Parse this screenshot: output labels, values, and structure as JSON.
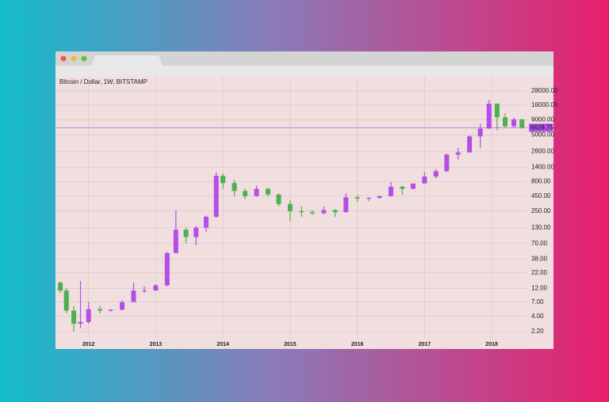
{
  "chart_data": {
    "type": "candlestick",
    "title": "Bitcoin / Dollar, 1W, BITSTAMP",
    "log_scale": true,
    "grid": true,
    "up_color": "#b34ee6",
    "down_color": "#4caf50",
    "last_price": 6628.75,
    "last_price_color": "#b34ee6",
    "xlim": [
      2011.52,
      2018.53
    ],
    "xticks": [
      2012,
      2013,
      2014,
      2015,
      2016,
      2017,
      2018
    ],
    "ylim": [
      1.66,
      49000
    ],
    "yticks": [
      {
        "value": 2.2,
        "label": "2.20"
      },
      {
        "value": 4,
        "label": "4.00"
      },
      {
        "value": 7,
        "label": "7.00"
      },
      {
        "value": 12,
        "label": "12.00"
      },
      {
        "value": 22,
        "label": "22.00"
      },
      {
        "value": 38,
        "label": "38.00"
      },
      {
        "value": 70,
        "label": "70.00"
      },
      {
        "value": 130,
        "label": "130.00"
      },
      {
        "value": 250,
        "label": "250.00"
      },
      {
        "value": 450,
        "label": "450.00"
      },
      {
        "value": 800,
        "label": "800.00"
      },
      {
        "value": 1400,
        "label": "1400.00"
      },
      {
        "value": 2600,
        "label": "2600.00"
      },
      {
        "value": 5000,
        "label": "5000.00"
      },
      {
        "value": 9000,
        "label": "9000.00"
      },
      {
        "value": 16000,
        "label": "16000.00"
      },
      {
        "value": 28000,
        "label": "28000.00"
      }
    ],
    "x": [
      2011.58,
      2011.67,
      2011.78,
      2011.88,
      2012.0,
      2012.17,
      2012.33,
      2012.5,
      2012.67,
      2012.83,
      2013.0,
      2013.17,
      2013.3,
      2013.45,
      2013.6,
      2013.75,
      2013.9,
      2014.0,
      2014.17,
      2014.33,
      2014.5,
      2014.67,
      2014.83,
      2015.0,
      2015.17,
      2015.33,
      2015.5,
      2015.67,
      2015.83,
      2016.0,
      2016.17,
      2016.33,
      2016.5,
      2016.67,
      2016.83,
      2017.0,
      2017.17,
      2017.33,
      2017.5,
      2017.67,
      2017.83,
      2017.96,
      2018.08,
      2018.2,
      2018.33,
      2018.45
    ],
    "open": [
      15,
      11,
      5,
      3,
      3.2,
      5.3,
      5,
      5.2,
      7,
      11,
      11,
      13.5,
      48,
      120,
      90,
      130,
      200,
      1000,
      750,
      550,
      450,
      600,
      480,
      330,
      250,
      240,
      230,
      260,
      240,
      430,
      410,
      420,
      450,
      650,
      600,
      740,
      970,
      1200,
      2300,
      2500,
      4700,
      6400,
      17000,
      10000,
      7000,
      9200
    ],
    "high": [
      16,
      12,
      6,
      16,
      7,
      6,
      5.3,
      7.5,
      15,
      13,
      14,
      50,
      260,
      130,
      140,
      210,
      1160,
      1100,
      850,
      600,
      680,
      620,
      500,
      380,
      300,
      260,
      300,
      270,
      500,
      470,
      430,
      460,
      780,
      680,
      740,
      1150,
      1300,
      2400,
      3000,
      4900,
      7800,
      19600,
      17200,
      11700,
      9900,
      9300
    ],
    "low": [
      10,
      4.5,
      2.2,
      2.5,
      3,
      4.5,
      4.8,
      5,
      7,
      10,
      11,
      13,
      48,
      70,
      65,
      110,
      190,
      600,
      450,
      400,
      440,
      450,
      300,
      170,
      200,
      215,
      220,
      200,
      235,
      360,
      370,
      410,
      440,
      480,
      590,
      740,
      900,
      1150,
      1900,
      2500,
      3000,
      6300,
      6000,
      6600,
      6500,
      6300
    ],
    "close": [
      11,
      5,
      3,
      3.2,
      5.3,
      5,
      5.2,
      7,
      11,
      11,
      13.5,
      48,
      120,
      90,
      130,
      200,
      1000,
      750,
      550,
      450,
      600,
      480,
      330,
      250,
      240,
      230,
      260,
      240,
      430,
      410,
      420,
      450,
      650,
      600,
      740,
      970,
      1200,
      2300,
      2500,
      4700,
      6400,
      17000,
      10000,
      7000,
      9200,
      6628.75
    ]
  }
}
